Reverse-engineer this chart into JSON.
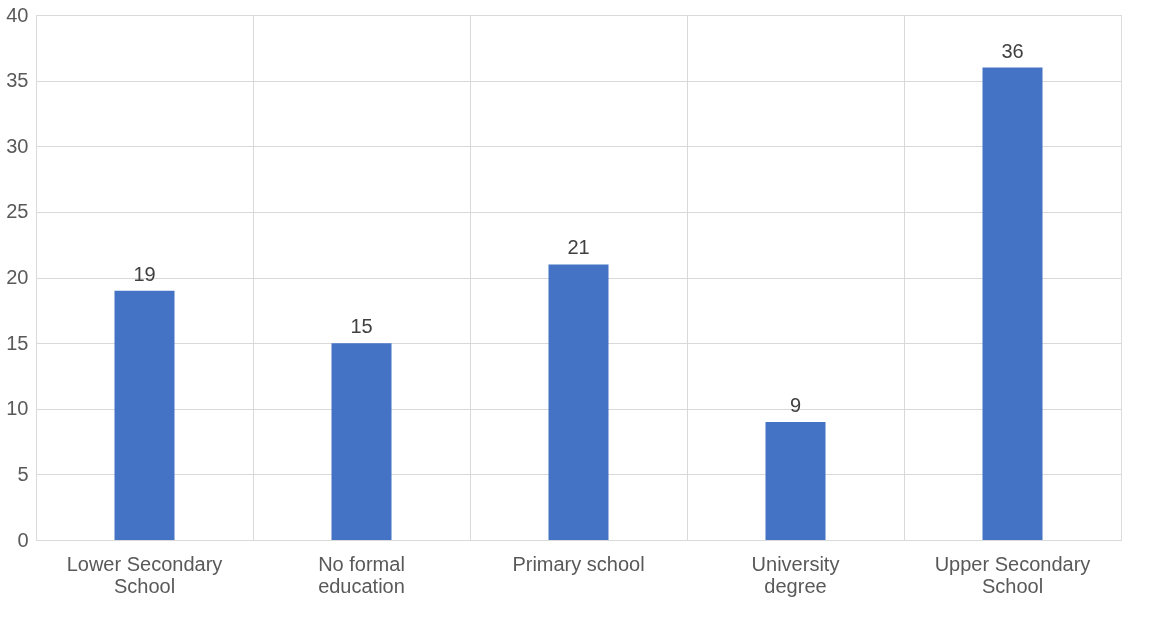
{
  "chart_data": {
    "type": "bar",
    "categories": [
      "Lower Secondary School",
      "No formal education",
      "Primary school",
      "University degree",
      "Upper Secondary School"
    ],
    "values": [
      19,
      15,
      21,
      9,
      36
    ],
    "color": "#4472c4",
    "ylim": [
      0,
      40
    ],
    "yticks": [
      0,
      5,
      10,
      15,
      20,
      25,
      30,
      35,
      40
    ],
    "grid": true,
    "data_labels": true
  }
}
